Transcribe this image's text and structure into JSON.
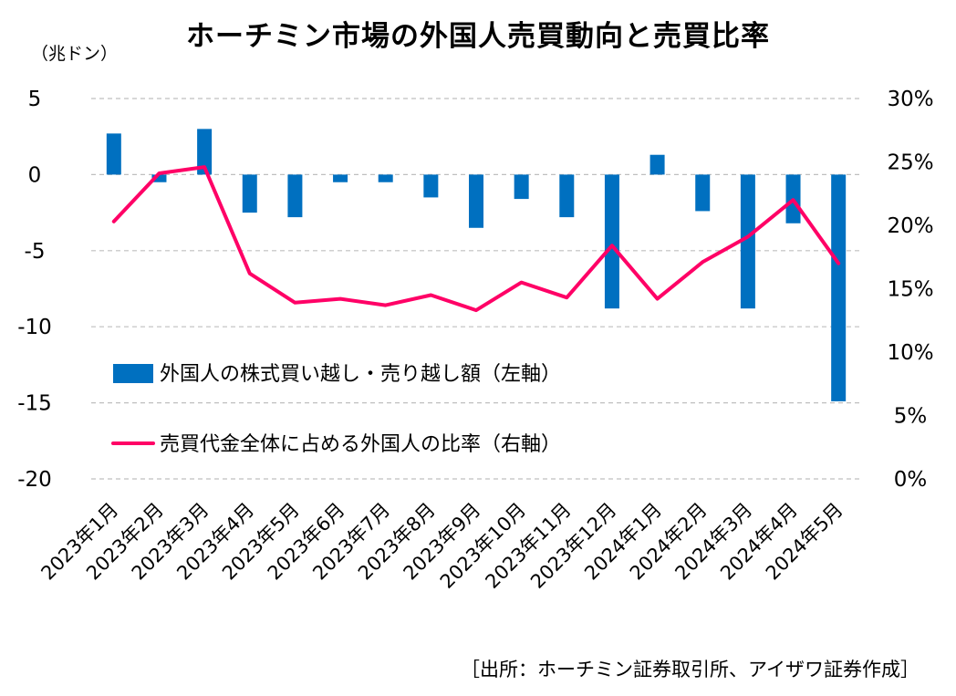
{
  "chart_data": {
    "type": "bar+line",
    "title": "ホーチミン市場の外国人売買動向と売買比率",
    "left_axis_unit": "（兆ドン）",
    "left_ylim": [
      -20,
      5
    ],
    "left_ticks": [
      "5",
      "0",
      "-5",
      "-10",
      "-15",
      "-20"
    ],
    "right_ylim": [
      0,
      30
    ],
    "right_ticks": [
      "30%",
      "25%",
      "20%",
      "15%",
      "10%",
      "5%",
      "0%"
    ],
    "grid": true,
    "legend_position": "inside-left",
    "categories": [
      "2023年1月",
      "2023年2月",
      "2023年3月",
      "2023年4月",
      "2023年5月",
      "2023年6月",
      "2023年7月",
      "2023年8月",
      "2023年9月",
      "2023年10月",
      "2023年11月",
      "2023年12月",
      "2024年1月",
      "2024年2月",
      "2024年3月",
      "2024年4月",
      "2024年5月"
    ],
    "series": [
      {
        "name": "外国人の株式買い越し・売り越し額（左軸）",
        "type": "bar",
        "axis": "left",
        "color": "#0070C0",
        "values": [
          2.7,
          -0.5,
          3.0,
          -2.5,
          -2.8,
          -0.5,
          -0.5,
          -1.5,
          -3.5,
          -1.6,
          -2.8,
          -8.8,
          1.3,
          -2.4,
          -8.8,
          -3.2,
          -14.9
        ]
      },
      {
        "name": "売買代金全体に占める外国人の比率（右軸）",
        "type": "line",
        "axis": "right",
        "color": "#FF0066",
        "values": [
          20.3,
          24.1,
          24.6,
          16.2,
          13.9,
          14.2,
          13.7,
          14.5,
          13.3,
          15.5,
          14.3,
          18.4,
          14.2,
          17.1,
          19.1,
          22.0,
          17.0
        ]
      }
    ]
  },
  "source_note": "［出所：ホーチミン証券取引所、アイザワ証券作成］"
}
